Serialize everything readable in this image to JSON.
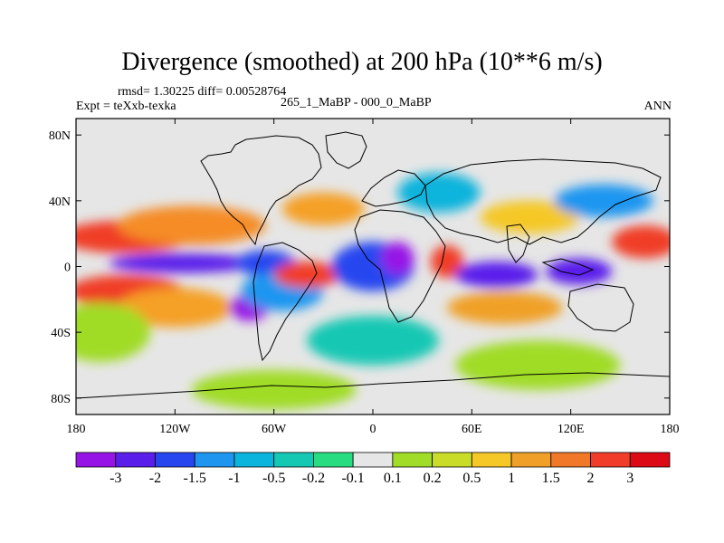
{
  "title": "Divergence (smoothed) at 200 hPa (10**6 m/s)",
  "stats": "rmsd= 1.30225 diff= 0.00528764",
  "experiment": "Expt = teXxb-texka",
  "comparison": "265_1_MaBP - 000_0_MaBP",
  "season": "ANN",
  "map": {
    "projection": "cylindrical equidistant",
    "lon_range": [
      -180,
      180
    ],
    "lat_range": [
      -90,
      90
    ],
    "lon_ticks": [
      {
        "value": -180,
        "label": "180"
      },
      {
        "value": -120,
        "label": "120W"
      },
      {
        "value": -60,
        "label": "60W"
      },
      {
        "value": 0,
        "label": "0"
      },
      {
        "value": 60,
        "label": "60E"
      },
      {
        "value": 120,
        "label": "120E"
      },
      {
        "value": 180,
        "label": "180"
      }
    ],
    "lat_ticks": [
      {
        "value": 80,
        "label": "80N"
      },
      {
        "value": 40,
        "label": "40N"
      },
      {
        "value": 0,
        "label": "0"
      },
      {
        "value": -40,
        "label": "40S"
      },
      {
        "value": -80,
        "label": "80S"
      }
    ],
    "background_color": "#e6e6e6",
    "field_blobs": [
      {
        "lon": -150,
        "lat": 18,
        "rlon": 40,
        "rlat": 10,
        "color": "#f03c28"
      },
      {
        "lon": -110,
        "lat": 25,
        "rlon": 45,
        "rlat": 12,
        "color": "#f58c28"
      },
      {
        "lon": -150,
        "lat": -15,
        "rlon": 35,
        "rlat": 10,
        "color": "#f03c28"
      },
      {
        "lon": -120,
        "lat": -25,
        "rlon": 35,
        "rlat": 12,
        "color": "#f5a028"
      },
      {
        "lon": -165,
        "lat": -40,
        "rlon": 30,
        "rlat": 18,
        "color": "#a0dc28"
      },
      {
        "lon": -115,
        "lat": 2,
        "rlon": 45,
        "rlat": 6,
        "color": "#5a1eeb"
      },
      {
        "lon": -65,
        "lat": 2,
        "rlon": 18,
        "rlat": 8,
        "color": "#2846f0"
      },
      {
        "lon": -75,
        "lat": -25,
        "rlon": 12,
        "rlat": 8,
        "color": "#9614e6"
      },
      {
        "lon": -55,
        "lat": -15,
        "rlon": 25,
        "rlat": 12,
        "color": "#1e96f0"
      },
      {
        "lon": -40,
        "lat": -5,
        "rlon": 20,
        "rlat": 8,
        "color": "#f03c28"
      },
      {
        "lon": 0,
        "lat": 0,
        "rlon": 25,
        "rlat": 15,
        "color": "#2846f0"
      },
      {
        "lon": 15,
        "lat": 5,
        "rlon": 10,
        "rlat": 10,
        "color": "#9614e6"
      },
      {
        "lon": 45,
        "lat": 3,
        "rlon": 10,
        "rlat": 10,
        "color": "#f03c28"
      },
      {
        "lon": 75,
        "lat": -5,
        "rlon": 25,
        "rlat": 8,
        "color": "#5a1eeb"
      },
      {
        "lon": 125,
        "lat": -3,
        "rlon": 20,
        "rlat": 8,
        "color": "#5a1eeb"
      },
      {
        "lon": 165,
        "lat": 15,
        "rlon": 20,
        "rlat": 10,
        "color": "#f03c28"
      },
      {
        "lon": 95,
        "lat": 30,
        "rlon": 30,
        "rlat": 10,
        "color": "#f5c828"
      },
      {
        "lon": 80,
        "lat": -25,
        "rlon": 35,
        "rlat": 10,
        "color": "#f0a028"
      },
      {
        "lon": -30,
        "lat": 35,
        "rlon": 25,
        "rlat": 10,
        "color": "#f5a028"
      },
      {
        "lon": 40,
        "lat": 45,
        "rlon": 25,
        "rlat": 12,
        "color": "#0ab4dc"
      },
      {
        "lon": 140,
        "lat": 40,
        "rlon": 30,
        "rlat": 10,
        "color": "#1e96f0"
      },
      {
        "lon": 0,
        "lat": -45,
        "rlon": 40,
        "rlat": 15,
        "color": "#14c8b4"
      },
      {
        "lon": 100,
        "lat": -60,
        "rlon": 50,
        "rlat": 15,
        "color": "#a0dc28"
      },
      {
        "lon": -60,
        "lat": -75,
        "rlon": 50,
        "rlat": 12,
        "color": "#a0dc28"
      }
    ]
  },
  "colorbar": {
    "labels": [
      "-3",
      "-2",
      "-1.5",
      "-1",
      "-0.5",
      "-0.2",
      "-0.1",
      "0.1",
      "0.2",
      "0.5",
      "1",
      "1.5",
      "2",
      "3"
    ],
    "colors": [
      "#9614e6",
      "#5a1eeb",
      "#2846f0",
      "#1e96f0",
      "#0ab4dc",
      "#14c8b4",
      "#28dc82",
      "#e6e6e6",
      "#a0dc28",
      "#c8dc28",
      "#f5c828",
      "#f0a028",
      "#f07828",
      "#f03c28",
      "#dc0a14"
    ]
  }
}
